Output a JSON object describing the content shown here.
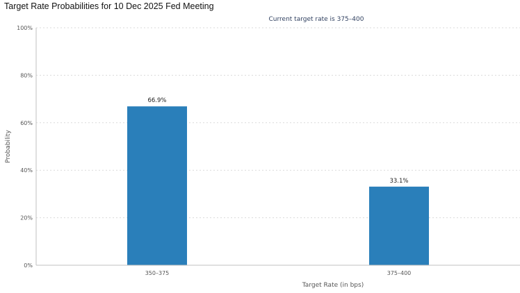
{
  "title": "Target Rate Probabilities for 10 Dec 2025 Fed Meeting",
  "subtitle": "Current target rate is 375–400",
  "colors": {
    "bar": "#2a7fba",
    "grid": "#d9d9d9",
    "axis": "#c0c0c0",
    "text": "#555555",
    "subtitle": "#2f3f5f"
  },
  "chart_data": {
    "type": "bar",
    "title": "Target Rate Probabilities for 10 Dec 2025 Fed Meeting",
    "subtitle": "Current target rate is 375–400",
    "categories": [
      "350–375",
      "375–400"
    ],
    "values": [
      66.9,
      33.1
    ],
    "data_labels": [
      "66.9%",
      "33.1%"
    ],
    "xlabel": "Target Rate (in bps)",
    "ylabel": "Probability",
    "ylim": [
      0,
      100
    ],
    "yticks": [
      "0%",
      "20%",
      "40%",
      "60%",
      "80%",
      "100%"
    ],
    "grid": true,
    "legend": "none"
  }
}
